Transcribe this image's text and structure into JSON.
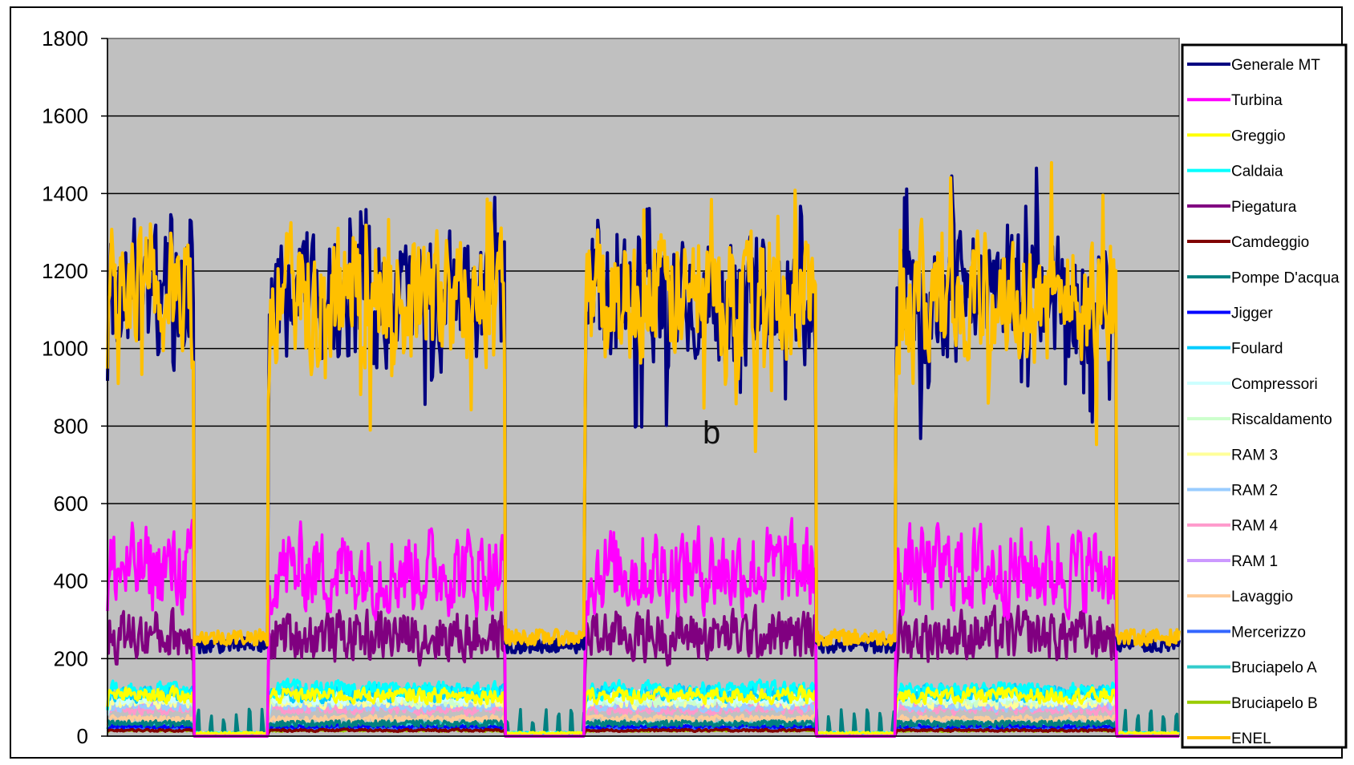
{
  "chart_data": {
    "type": "line",
    "title": "",
    "xlabel": "",
    "ylabel": "",
    "ylim": [
      0,
      1800
    ],
    "yticks": [
      "0",
      "200",
      "400",
      "600",
      "800",
      "1000",
      "1200",
      "1400",
      "1600",
      "1800"
    ],
    "grid": "horizontal",
    "plot_background": "#c0c0c0",
    "legend_position": "right",
    "annotation": "b",
    "num_points": 1000,
    "production_periods": [
      [
        0,
        80
      ],
      [
        150,
        370
      ],
      [
        445,
        660
      ],
      [
        735,
        940
      ]
    ],
    "series": [
      {
        "name": "Generale MT",
        "color": "#000080",
        "base_high": 1130,
        "base_low": 235
      },
      {
        "name": "Turbina",
        "color": "#ff00ff",
        "base_high": 430,
        "base_low": 0
      },
      {
        "name": "Greggio",
        "color": "#ffff00",
        "base_high": 105,
        "base_low": 5
      },
      {
        "name": "Caldaia",
        "color": "#00ffff",
        "base_high": 120,
        "base_low": 5
      },
      {
        "name": "Piegatura",
        "color": "#800080",
        "base_high": 260,
        "base_low": 0
      },
      {
        "name": "Camdeggio",
        "color": "#800000",
        "base_high": 15,
        "base_low": 0
      },
      {
        "name": "Pompe D'acqua",
        "color": "#008080",
        "base_high": 30,
        "base_low": 30
      },
      {
        "name": "Jigger",
        "color": "#0000ff",
        "base_high": 25,
        "base_low": 0
      },
      {
        "name": "Foulard",
        "color": "#00ccff",
        "base_high": 110,
        "base_low": 5
      },
      {
        "name": "Compressori",
        "color": "#ccffff",
        "base_high": 100,
        "base_low": 5
      },
      {
        "name": "Riscaldamento",
        "color": "#ccffcc",
        "base_high": 95,
        "base_low": 5
      },
      {
        "name": "RAM 3",
        "color": "#ffff99",
        "base_high": 90,
        "base_low": 0
      },
      {
        "name": "RAM 2",
        "color": "#99ccff",
        "base_high": 80,
        "base_low": 0
      },
      {
        "name": "RAM 4",
        "color": "#ff99cc",
        "base_high": 70,
        "base_low": 0
      },
      {
        "name": "RAM 1",
        "color": "#cc99ff",
        "base_high": 85,
        "base_low": 0
      },
      {
        "name": "Lavaggio",
        "color": "#ffcc99",
        "base_high": 45,
        "base_low": 0
      },
      {
        "name": "Mercerizzo",
        "color": "#3366ff",
        "base_high": 20,
        "base_low": 0
      },
      {
        "name": "Bruciapelo A",
        "color": "#33cccc",
        "base_high": 30,
        "base_low": 0
      },
      {
        "name": "Bruciapelo B",
        "color": "#99cc00",
        "base_high": 15,
        "base_low": 0
      },
      {
        "name": "ENEL",
        "color": "#ffc000",
        "base_high": 1130,
        "base_low": 255
      }
    ]
  }
}
